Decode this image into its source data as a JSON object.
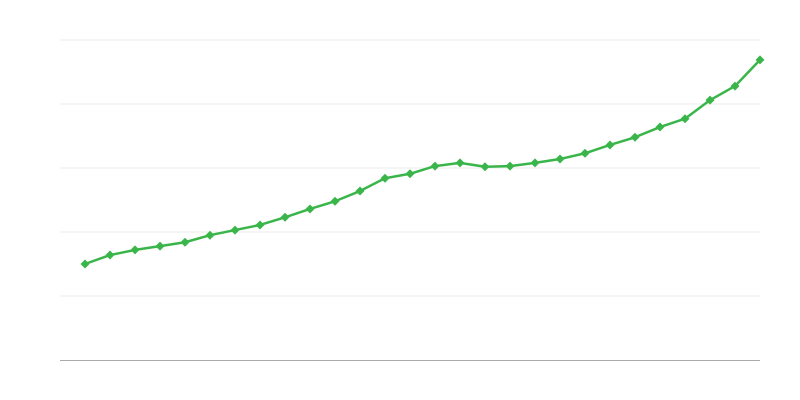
{
  "chart_data": {
    "type": "line",
    "title": "",
    "xlabel": "",
    "ylabel": "",
    "ylim": [
      0,
      5
    ],
    "grid": true,
    "legend": "none",
    "marker": "diamond",
    "series_color": "#3ab54a",
    "grid_color": "#ebebeb",
    "axis_color": "#aaaaaa",
    "x": [
      1,
      2,
      3,
      4,
      5,
      6,
      7,
      8,
      9,
      10,
      11,
      12,
      13,
      14,
      15,
      16,
      17,
      18,
      19,
      20,
      21,
      22,
      23,
      24,
      25,
      26,
      27,
      28
    ],
    "series": [
      {
        "values": [
          1.5,
          1.64,
          1.72,
          1.78,
          1.84,
          1.95,
          2.03,
          2.11,
          2.23,
          2.36,
          2.48,
          2.64,
          2.84,
          2.91,
          3.03,
          3.08,
          3.02,
          3.03,
          3.08,
          3.14,
          3.23,
          3.36,
          3.48,
          3.64,
          3.77,
          4.06,
          4.28,
          4.69
        ]
      }
    ]
  }
}
